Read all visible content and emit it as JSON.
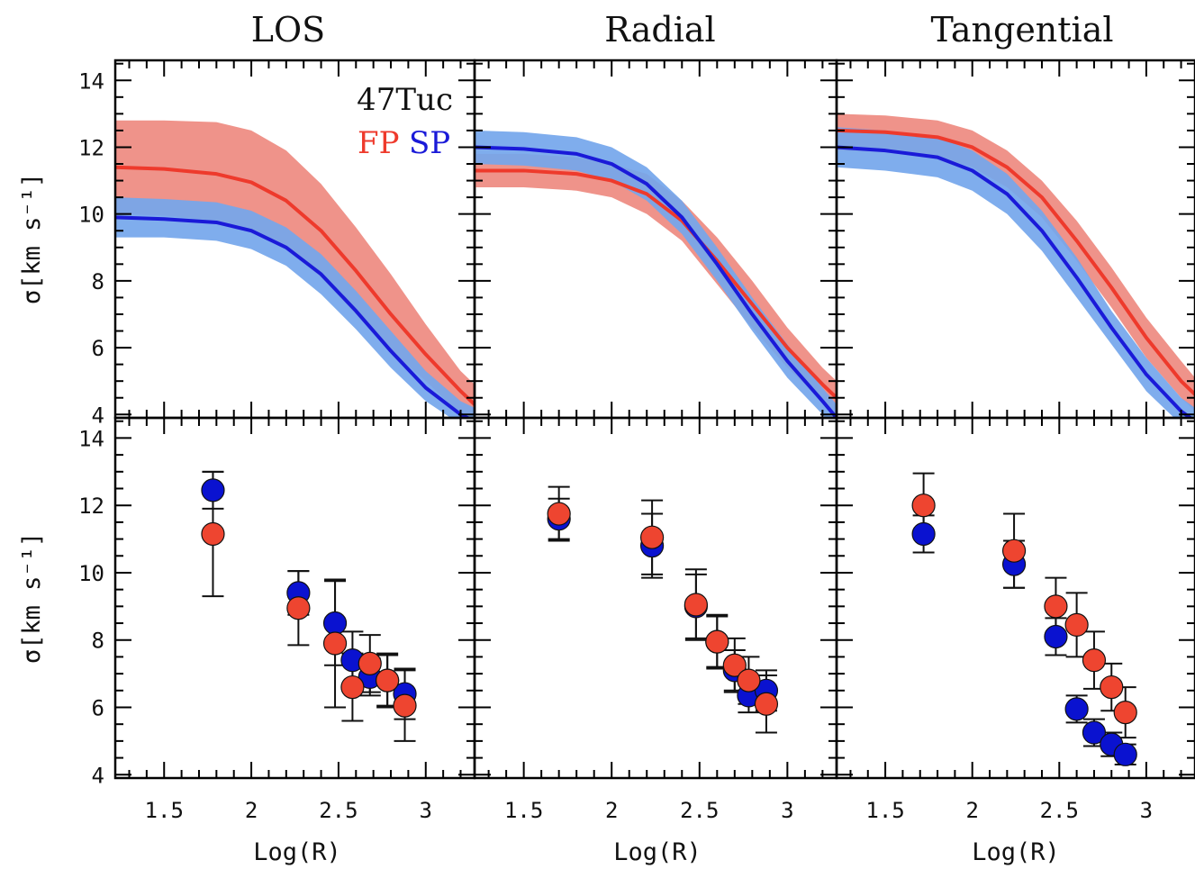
{
  "titles": [
    "LOS",
    "Radial",
    "Tangential"
  ],
  "annotation": {
    "cluster": "47Tuc",
    "fp_label": "FP",
    "sp_label": "SP"
  },
  "axes": {
    "xlabel": "Log(R)",
    "ylabel": "σ[km s⁻¹]",
    "xlim": [
      1.22,
      3.28
    ],
    "ylim": [
      3.9,
      14.6
    ],
    "xticks": [
      1.5,
      2,
      2.5,
      3
    ],
    "xtick_labels": [
      "1.5",
      "2",
      "2.5",
      "3"
    ],
    "yticks": [
      4,
      6,
      8,
      10,
      12,
      14
    ],
    "ytick_labels": [
      "4",
      "6",
      "8",
      "10",
      "12",
      "14"
    ]
  },
  "colors": {
    "fp": "#ee3a2c",
    "fp_band": "#ee8a80",
    "sp": "#1a1ad8",
    "sp_band": "#74a6ec",
    "sp_marker": "#0a12d0",
    "fp_marker": "#ee4530"
  },
  "chart_data": [
    {
      "type": "area",
      "panel": "LOS (model)",
      "x": [
        1.22,
        1.5,
        1.8,
        2.0,
        2.2,
        2.4,
        2.6,
        2.8,
        3.0,
        3.2,
        3.28
      ],
      "series": [
        {
          "name": "FP",
          "values": [
            11.4,
            11.35,
            11.2,
            10.95,
            10.4,
            9.5,
            8.3,
            7.0,
            5.8,
            4.7,
            4.3
          ],
          "band_low": [
            10.0,
            9.95,
            9.8,
            9.5,
            9.0,
            8.1,
            7.0,
            5.9,
            5.0,
            4.0,
            3.7
          ],
          "band_high": [
            12.8,
            12.8,
            12.75,
            12.5,
            11.9,
            10.9,
            9.6,
            8.2,
            6.7,
            5.3,
            4.9
          ]
        },
        {
          "name": "SP",
          "values": [
            9.9,
            9.85,
            9.75,
            9.5,
            9.0,
            8.2,
            7.1,
            5.9,
            4.8,
            4.0,
            3.8
          ],
          "band_low": [
            9.3,
            9.3,
            9.2,
            8.95,
            8.45,
            7.6,
            6.55,
            5.4,
            4.4,
            3.7,
            3.5
          ],
          "band_high": [
            10.5,
            10.45,
            10.35,
            10.1,
            9.6,
            8.8,
            7.7,
            6.5,
            5.3,
            4.4,
            4.2
          ]
        }
      ]
    },
    {
      "type": "area",
      "panel": "Radial (model)",
      "x": [
        1.22,
        1.5,
        1.8,
        2.0,
        2.2,
        2.4,
        2.6,
        2.8,
        3.0,
        3.2,
        3.28
      ],
      "series": [
        {
          "name": "FP",
          "values": [
            11.3,
            11.3,
            11.2,
            11.0,
            10.6,
            9.8,
            8.6,
            7.3,
            6.0,
            4.9,
            4.5
          ],
          "band_low": [
            10.8,
            10.8,
            10.7,
            10.5,
            10.0,
            9.2,
            7.9,
            6.6,
            5.4,
            4.4,
            4.0
          ],
          "band_high": [
            11.8,
            11.8,
            11.7,
            11.5,
            11.2,
            10.4,
            9.3,
            8.0,
            6.6,
            5.4,
            5.0
          ]
        },
        {
          "name": "SP",
          "values": [
            12.0,
            11.95,
            11.8,
            11.5,
            10.9,
            9.9,
            8.5,
            7.0,
            5.6,
            4.4,
            3.9
          ],
          "band_low": [
            11.5,
            11.45,
            11.3,
            11.0,
            10.4,
            9.4,
            8.0,
            6.5,
            5.1,
            4.0,
            3.5
          ],
          "band_high": [
            12.5,
            12.45,
            12.3,
            12.0,
            11.4,
            10.4,
            9.0,
            7.5,
            6.1,
            4.8,
            4.3
          ]
        }
      ]
    },
    {
      "type": "area",
      "panel": "Tangential (model)",
      "x": [
        1.22,
        1.5,
        1.8,
        2.0,
        2.2,
        2.4,
        2.6,
        2.8,
        3.0,
        3.2,
        3.28
      ],
      "series": [
        {
          "name": "FP",
          "values": [
            12.5,
            12.45,
            12.3,
            12.0,
            11.4,
            10.5,
            9.2,
            7.8,
            6.3,
            5.0,
            4.6
          ],
          "band_low": [
            11.9,
            11.85,
            11.7,
            11.4,
            10.8,
            9.9,
            8.6,
            7.2,
            5.7,
            4.5,
            4.1
          ],
          "band_high": [
            13.0,
            12.95,
            12.8,
            12.5,
            11.9,
            11.0,
            9.8,
            8.4,
            6.9,
            5.6,
            5.1
          ]
        },
        {
          "name": "SP",
          "values": [
            12.0,
            11.9,
            11.7,
            11.3,
            10.6,
            9.5,
            8.1,
            6.6,
            5.2,
            4.1,
            3.8
          ],
          "band_low": [
            11.4,
            11.3,
            11.1,
            10.7,
            10.0,
            8.9,
            7.5,
            6.1,
            4.7,
            3.7,
            3.4
          ],
          "band_high": [
            12.6,
            12.5,
            12.3,
            11.9,
            11.2,
            10.1,
            8.7,
            7.1,
            5.7,
            4.5,
            4.2
          ]
        }
      ]
    },
    {
      "type": "scatter",
      "panel": "LOS (data)",
      "series": [
        {
          "name": "SP",
          "x": [
            1.78,
            2.27,
            2.48,
            2.58,
            2.68,
            2.78,
            2.88
          ],
          "y": [
            12.45,
            9.4,
            8.5,
            7.4,
            6.9,
            6.8,
            6.4
          ],
          "err": [
            0.55,
            0.65,
            1.25,
            0.85,
            0.55,
            0.8,
            0.75
          ]
        },
        {
          "name": "FP",
          "x": [
            1.78,
            2.27,
            2.48,
            2.58,
            2.68,
            2.78,
            2.88
          ],
          "y": [
            11.15,
            8.95,
            7.9,
            6.6,
            7.3,
            6.8,
            6.05
          ],
          "err": [
            1.85,
            1.1,
            1.9,
            1.0,
            0.85,
            0.75,
            1.05
          ]
        }
      ]
    },
    {
      "type": "scatter",
      "panel": "Radial (data)",
      "series": [
        {
          "name": "SP",
          "x": [
            1.7,
            2.23,
            2.48,
            2.6,
            2.7,
            2.78,
            2.88
          ],
          "y": [
            11.6,
            10.8,
            9.0,
            7.95,
            7.1,
            6.35,
            6.5
          ],
          "err": [
            0.6,
            0.95,
            0.95,
            0.75,
            0.6,
            0.5,
            0.6
          ]
        },
        {
          "name": "FP",
          "x": [
            1.7,
            2.23,
            2.48,
            2.6,
            2.7,
            2.78,
            2.88
          ],
          "y": [
            11.75,
            11.05,
            9.05,
            7.95,
            7.25,
            6.8,
            6.1
          ],
          "err": [
            0.8,
            1.1,
            1.05,
            0.8,
            0.8,
            0.7,
            0.85
          ]
        }
      ]
    },
    {
      "type": "scatter",
      "panel": "Tangential (data)",
      "series": [
        {
          "name": "SP",
          "x": [
            1.72,
            2.24,
            2.48,
            2.6,
            2.7,
            2.8,
            2.88
          ],
          "y": [
            11.15,
            10.25,
            8.1,
            5.95,
            5.25,
            4.9,
            4.6
          ],
          "err": [
            0.55,
            0.7,
            0.55,
            0.4,
            0.4,
            0.35,
            0.3
          ]
        },
        {
          "name": "FP",
          "x": [
            1.72,
            2.24,
            2.48,
            2.6,
            2.7,
            2.8,
            2.88
          ],
          "y": [
            12.0,
            10.65,
            9.0,
            8.45,
            7.4,
            6.6,
            5.85
          ],
          "err": [
            0.95,
            1.1,
            0.85,
            0.95,
            0.85,
            0.7,
            0.75
          ]
        }
      ]
    }
  ]
}
